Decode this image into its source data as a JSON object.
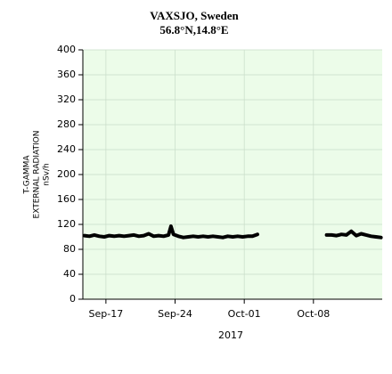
{
  "chart_data": {
    "type": "line",
    "title": "VAXSJO, Sweden",
    "subtitle": "56.8°N,14.8°E",
    "y_label": [
      "T-GAMMA",
      "EXTERNAL RADIATION",
      "nSv/h"
    ],
    "x_label": "2017",
    "x": [
      "2017-09-14T20:00Z",
      "2017-09-15T08:00Z",
      "2017-09-15T20:00Z",
      "2017-09-16T08:00Z",
      "2017-09-16T20:00Z",
      "2017-09-17T08:00Z",
      "2017-09-17T20:00Z",
      "2017-09-18T08:00Z",
      "2017-09-18T20:00Z",
      "2017-09-19T08:00Z",
      "2017-09-19T20:00Z",
      "2017-09-20T08:00Z",
      "2017-09-20T20:00Z",
      "2017-09-21T08:00Z",
      "2017-09-21T20:00Z",
      "2017-09-22T08:00Z",
      "2017-09-22T20:00Z",
      "2017-09-23T08:00Z",
      "2017-09-23T14:00Z",
      "2017-09-23T20:00Z",
      "2017-09-24T08:00Z",
      "2017-09-24T20:00Z",
      "2017-09-25T08:00Z",
      "2017-09-25T20:00Z",
      "2017-09-26T08:00Z",
      "2017-09-26T20:00Z",
      "2017-09-27T08:00Z",
      "2017-09-27T20:00Z",
      "2017-09-28T08:00Z",
      "2017-09-28T20:00Z",
      "2017-09-29T08:00Z",
      "2017-09-29T20:00Z",
      "2017-09-30T08:00Z",
      "2017-09-30T20:00Z",
      "2017-10-01T08:00Z",
      "2017-10-01T20:00Z",
      "2017-10-02T08:00Z",
      "2017-10-05T00:00Z",
      "2017-10-09T08:00Z",
      "2017-10-09T20:00Z",
      "2017-10-10T08:00Z",
      "2017-10-10T20:00Z",
      "2017-10-11T08:00Z",
      "2017-10-11T20:00Z",
      "2017-10-12T08:00Z",
      "2017-10-12T20:00Z",
      "2017-10-13T08:00Z",
      "2017-10-13T20:00Z",
      "2017-10-14T08:00Z",
      "2017-10-14T20:00Z"
    ],
    "series": [
      {
        "name": "T-GAMMA",
        "color": "#000000",
        "values": [
          102,
          101,
          103,
          101,
          100,
          102,
          101,
          102,
          101,
          102,
          103,
          101,
          102,
          105,
          101,
          102,
          101,
          103,
          117,
          104,
          101,
          99,
          100,
          101,
          100,
          101,
          100,
          101,
          100,
          99,
          101,
          100,
          101,
          100,
          101,
          101,
          104,
          null,
          103,
          103,
          102,
          104,
          103,
          109,
          102,
          105,
          103,
          101,
          100,
          99
        ]
      }
    ],
    "xlim": [
      "2017-09-14T16:00Z",
      "2017-10-14T23:00Z"
    ],
    "xticks": [
      {
        "value": "2017-09-17T00:00Z",
        "label": "Sep-17"
      },
      {
        "value": "2017-09-24T00:00Z",
        "label": "Sep-24"
      },
      {
        "value": "2017-10-01T00:00Z",
        "label": "Oct-01"
      },
      {
        "value": "2017-10-08T00:00Z",
        "label": "Oct-08"
      }
    ],
    "ylim": [
      0,
      400
    ],
    "yticks": [
      0,
      40,
      80,
      120,
      160,
      200,
      240,
      280,
      320,
      360,
      400
    ],
    "grid": true,
    "background": "#ecfce9"
  }
}
